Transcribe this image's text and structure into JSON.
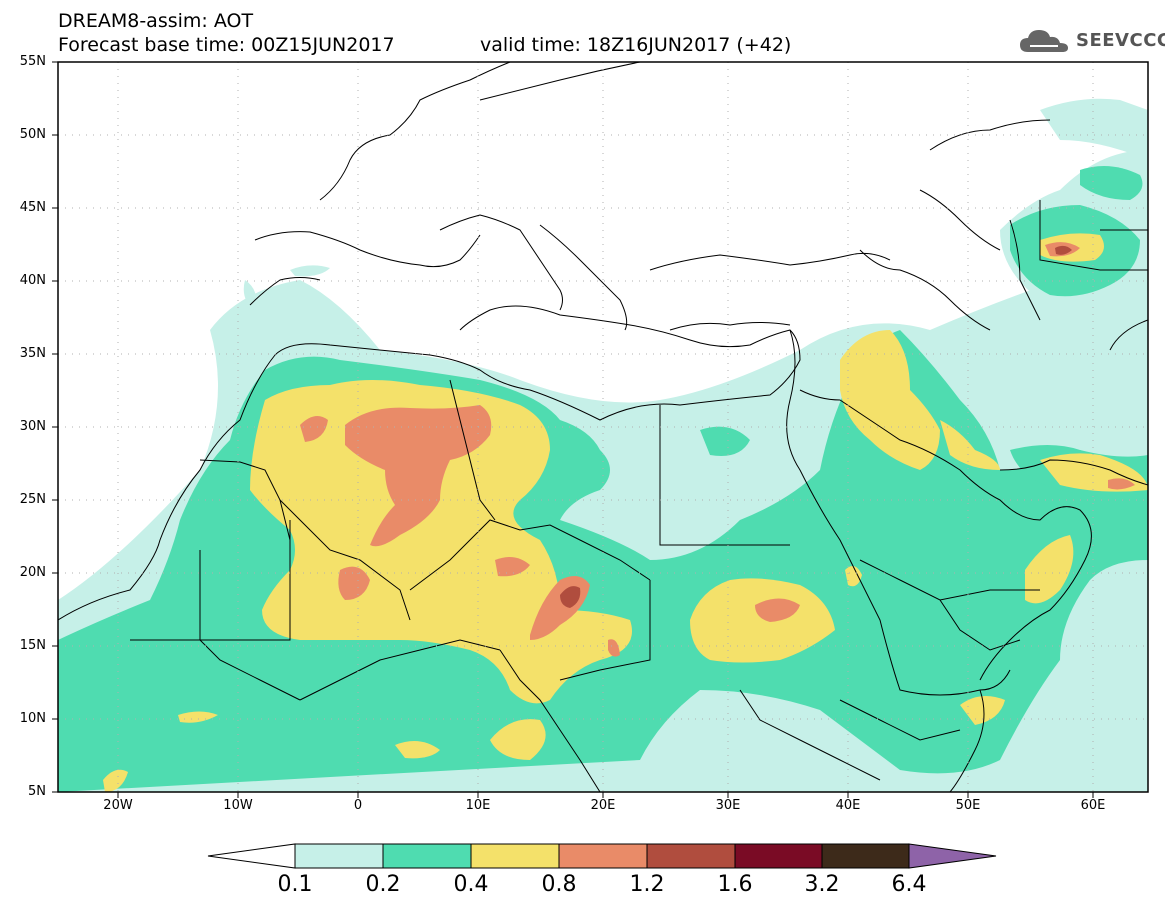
{
  "header": {
    "model": "DREAM8-assim: AOT",
    "base_time": "Forecast base time: 00Z15JUN2017",
    "valid_time": "valid time: 18Z16JUN2017 (+42)"
  },
  "logo": {
    "text": "SEEVCCC",
    "icon": "cloud-icon"
  },
  "axes": {
    "lat_labels": [
      "55N",
      "50N",
      "45N",
      "40N",
      "35N",
      "30N",
      "25N",
      "20N",
      "15N",
      "10N",
      "5N"
    ],
    "lon_labels": [
      "20W",
      "10W",
      "0",
      "10E",
      "20E",
      "30E",
      "40E",
      "50E",
      "60E"
    ]
  },
  "colorbar": {
    "labels": [
      "0.1",
      "0.2",
      "0.4",
      "0.8",
      "1.2",
      "1.6",
      "3.2",
      "6.4"
    ],
    "colors": [
      "#ffffff",
      "#c6f0e8",
      "#4fdcb0",
      "#f4e16a",
      "#e98b68",
      "#b04d3e",
      "#7a0b25",
      "#3d2a1a",
      "#8e63a8"
    ]
  },
  "fields": {
    "aot_classes": [
      {
        "level": 0.1,
        "color": "#c6f0e8"
      },
      {
        "level": 0.2,
        "color": "#4fdcb0"
      },
      {
        "level": 0.4,
        "color": "#f4e16a"
      },
      {
        "level": 0.8,
        "color": "#e98b68"
      },
      {
        "level": 1.2,
        "color": "#b04d3e"
      }
    ]
  }
}
